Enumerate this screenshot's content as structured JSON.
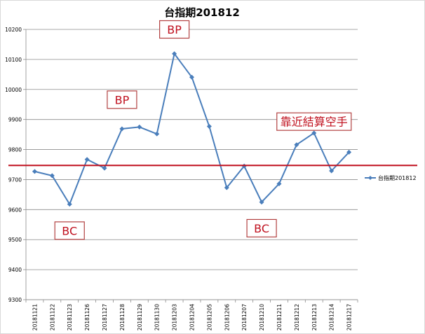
{
  "chart_data": {
    "type": "line",
    "title": "台指期201812",
    "xlabel": "",
    "ylabel": "",
    "categories": [
      "20181121",
      "20181122",
      "20181123",
      "20181126",
      "20181127",
      "20181128",
      "20181129",
      "20181130",
      "20181203",
      "20181204",
      "20181205",
      "20181206",
      "20181207",
      "20181210",
      "20181211",
      "20181212",
      "20181213",
      "20181214",
      "20181217"
    ],
    "series": [
      {
        "name": "台指期201812",
        "color": "#4a7ebb",
        "values": [
          9727,
          9713,
          9618,
          9767,
          9738,
          9869,
          9875,
          9852,
          10119,
          10041,
          9877,
          9673,
          9745,
          9625,
          9686,
          9816,
          9855,
          9729,
          9791
        ]
      }
    ],
    "ylim": [
      9300,
      10200
    ],
    "ytick_step": 100,
    "yticks": [
      "9300",
      "9400",
      "9500",
      "9600",
      "9700",
      "9800",
      "9900",
      "10000",
      "10100",
      "10200"
    ],
    "grid": true,
    "legend": "right",
    "reference_line": {
      "value": 9747,
      "color": "#c0111f"
    },
    "annotations": [
      {
        "text": "BP",
        "category_index": 8,
        "value": 10200
      },
      {
        "text": "BP",
        "category_index": 5,
        "value": 9966
      },
      {
        "text": "BC",
        "category_index": 2,
        "value": 9530
      },
      {
        "text": "BC",
        "category_index": 13,
        "value": 9538
      },
      {
        "text": "靠近結算空手",
        "category_index": 16,
        "value": 9893
      }
    ]
  }
}
